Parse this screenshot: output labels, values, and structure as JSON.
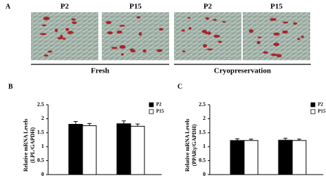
{
  "panel_a": {
    "label": "A",
    "images": [
      "P2",
      "P15",
      "P2",
      "P15"
    ],
    "groups": [
      "Fresh",
      "Cryopreservation"
    ]
  },
  "chart_data": [
    {
      "type": "bar",
      "label": "B",
      "ylabel": [
        "Relative mRNA Levels",
        "(LPL/GAPDH)"
      ],
      "categories": [
        null,
        null
      ],
      "series": [
        {
          "name": "P2",
          "color": "#000000",
          "values": [
            1.8,
            1.82
          ],
          "errors": [
            0.1,
            0.1
          ]
        },
        {
          "name": "P15",
          "color": "#ffffff",
          "values": [
            1.75,
            1.73
          ],
          "errors": [
            0.08,
            0.08
          ]
        }
      ],
      "ylim": [
        0,
        2.5
      ],
      "yticks": [
        0,
        0.5,
        1,
        1.5,
        2,
        2.5
      ]
    },
    {
      "type": "bar",
      "label": "C",
      "ylabel": [
        "Relative mRNA Levels",
        "(PPARγ/GAPDH)"
      ],
      "categories": [
        null,
        null
      ],
      "series": [
        {
          "name": "P2",
          "color": "#000000",
          "values": [
            1.22,
            1.23
          ],
          "errors": [
            0.06,
            0.07
          ]
        },
        {
          "name": "P15",
          "color": "#ffffff",
          "values": [
            1.22,
            1.22
          ],
          "errors": [
            0.05,
            0.05
          ]
        }
      ],
      "ylim": [
        0,
        2.5
      ],
      "yticks": [
        0,
        0.5,
        1,
        1.5,
        2,
        2.5
      ]
    }
  ]
}
